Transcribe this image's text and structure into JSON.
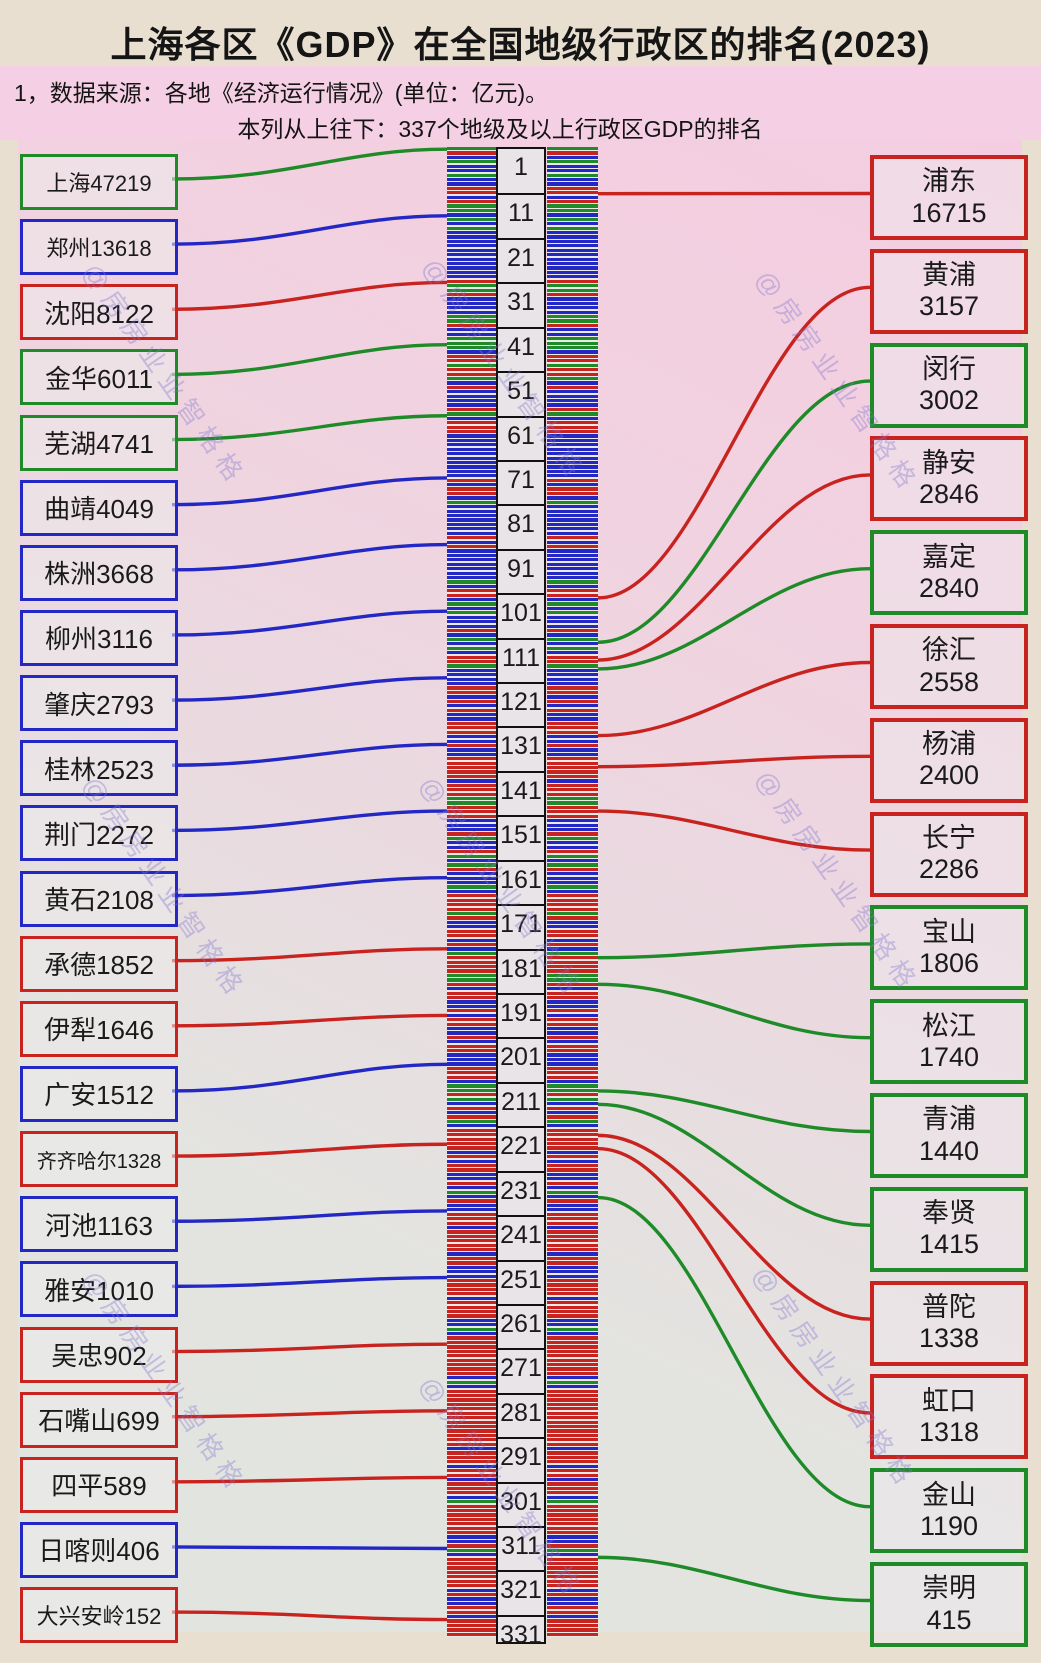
{
  "title": "上海各区《GDP》在全国地级行政区的排名(2023)",
  "notes": {
    "source": "1，数据来源：各地《经济运行情况》(单位：亿元)。",
    "column": "本列从上往下：337个地级及以上行政区GDP的排名"
  },
  "watermark": "@房房业业智格格",
  "colors": {
    "red": "#c8231f",
    "green": "#1e8b28",
    "blue": "#2328c4",
    "label_box_border": "#111111",
    "panel_pink": "#f4cde1",
    "panel_gray": "#e2e4df",
    "page_bg": "#e8dfd0"
  },
  "chart_data": {
    "type": "table",
    "title": "上海各区《GDP》在全国地级行政区的排名(2023)",
    "unit": "亿元",
    "axis_note": "中列自上而下为337个地级及以上行政区GDP排名",
    "total_ranks": 337,
    "rank_ticks": [
      1,
      11,
      21,
      31,
      41,
      51,
      61,
      71,
      81,
      91,
      101,
      111,
      121,
      131,
      141,
      151,
      161,
      171,
      181,
      191,
      201,
      211,
      221,
      231,
      241,
      251,
      261,
      271,
      281,
      291,
      301,
      311,
      321,
      331
    ],
    "series": [
      {
        "name": "全国参照城市(左列)",
        "points": [
          {
            "label": "上海",
            "value": 47219,
            "category": "green",
            "rank": 1
          },
          {
            "label": "郑州",
            "value": 13618,
            "category": "blue",
            "rank": 16
          },
          {
            "label": "沈阳",
            "value": 8122,
            "category": "red",
            "rank": 31
          },
          {
            "label": "金华",
            "value": 6011,
            "category": "green",
            "rank": 45
          },
          {
            "label": "芜湖",
            "value": 4741,
            "category": "green",
            "rank": 61
          },
          {
            "label": "曲靖",
            "value": 4049,
            "category": "blue",
            "rank": 75
          },
          {
            "label": "株洲",
            "value": 3668,
            "category": "blue",
            "rank": 90
          },
          {
            "label": "柳州",
            "value": 3116,
            "category": "blue",
            "rank": 105
          },
          {
            "label": "肇庆",
            "value": 2793,
            "category": "blue",
            "rank": 120
          },
          {
            "label": "桂林",
            "value": 2523,
            "category": "blue",
            "rank": 135
          },
          {
            "label": "荆门",
            "value": 2272,
            "category": "blue",
            "rank": 150
          },
          {
            "label": "黄石",
            "value": 2108,
            "category": "blue",
            "rank": 165
          },
          {
            "label": "承德",
            "value": 1852,
            "category": "red",
            "rank": 181
          },
          {
            "label": "伊犁",
            "value": 1646,
            "category": "red",
            "rank": 196
          },
          {
            "label": "广安",
            "value": 1512,
            "category": "blue",
            "rank": 207
          },
          {
            "label": "齐齐哈尔",
            "value": 1328,
            "category": "red",
            "rank": 225
          },
          {
            "label": "河池",
            "value": 1163,
            "category": "blue",
            "rank": 240
          },
          {
            "label": "雅安",
            "value": 1010,
            "category": "blue",
            "rank": 255
          },
          {
            "label": "吴忠",
            "value": 902,
            "category": "red",
            "rank": 270
          },
          {
            "label": "石嘴山",
            "value": 699,
            "category": "red",
            "rank": 285
          },
          {
            "label": "四平",
            "value": 589,
            "category": "red",
            "rank": 300
          },
          {
            "label": "日喀则",
            "value": 406,
            "category": "blue",
            "rank": 316
          },
          {
            "label": "大兴安岭",
            "value": 152,
            "category": "red",
            "rank": 332
          }
        ]
      },
      {
        "name": "上海各区(右列)",
        "points": [
          {
            "label": "浦东",
            "value": 16715,
            "category": "red",
            "rank": 11
          },
          {
            "label": "黄浦",
            "value": 3157,
            "category": "red",
            "rank": 102
          },
          {
            "label": "闵行",
            "value": 3002,
            "category": "green",
            "rank": 112
          },
          {
            "label": "静安",
            "value": 2846,
            "category": "red",
            "rank": 116
          },
          {
            "label": "嘉定",
            "value": 2840,
            "category": "green",
            "rank": 118
          },
          {
            "label": "徐汇",
            "value": 2558,
            "category": "red",
            "rank": 133
          },
          {
            "label": "杨浦",
            "value": 2400,
            "category": "red",
            "rank": 140
          },
          {
            "label": "长宁",
            "value": 2286,
            "category": "red",
            "rank": 150
          },
          {
            "label": "宝山",
            "value": 1806,
            "category": "green",
            "rank": 183
          },
          {
            "label": "松江",
            "value": 1740,
            "category": "green",
            "rank": 189
          },
          {
            "label": "青浦",
            "value": 1440,
            "category": "green",
            "rank": 213
          },
          {
            "label": "奉贤",
            "value": 1415,
            "category": "green",
            "rank": 216
          },
          {
            "label": "普陀",
            "value": 1338,
            "category": "red",
            "rank": 223
          },
          {
            "label": "虹口",
            "value": 1318,
            "category": "red",
            "rank": 226
          },
          {
            "label": "金山",
            "value": 1190,
            "category": "green",
            "rank": 237
          },
          {
            "label": "崇明",
            "value": 415,
            "category": "green",
            "rank": 318
          }
        ]
      }
    ]
  }
}
